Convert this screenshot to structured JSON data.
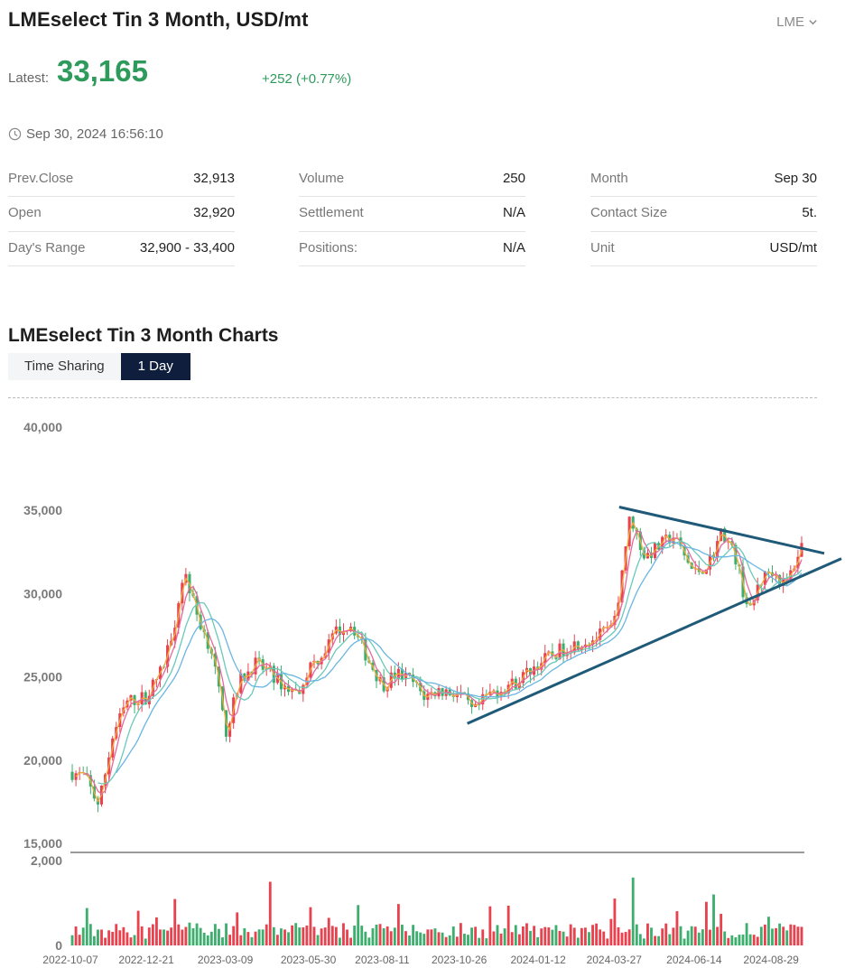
{
  "header": {
    "title": "LMEselect Tin 3 Month, USD/mt",
    "exchange": "LME",
    "latest_label": "Latest:",
    "latest_value": "33,165",
    "change": "+252 (+0.77%)",
    "timestamp": "Sep 30, 2024 16:56:10"
  },
  "stats": {
    "col1": [
      {
        "label": "Prev.Close",
        "value": "32,913"
      },
      {
        "label": "Open",
        "value": "32,920"
      },
      {
        "label": "Day's Range",
        "value": "32,900 - 33,400"
      }
    ],
    "col2": [
      {
        "label": "Volume",
        "value": "250"
      },
      {
        "label": "Settlement",
        "value": "N/A"
      },
      {
        "label": "Positions:",
        "value": "N/A"
      }
    ],
    "col3": [
      {
        "label": "Month",
        "value": "Sep 30"
      },
      {
        "label": "Contact Size",
        "value": "5t."
      },
      {
        "label": "Unit",
        "value": "USD/mt"
      }
    ]
  },
  "charts_section": {
    "title": "LMEselect Tin 3 Month Charts",
    "tabs": [
      {
        "label": "Time Sharing",
        "active": false
      },
      {
        "label": "1 Day",
        "active": true
      }
    ]
  },
  "colors": {
    "up": "#e8424e",
    "down": "#3dae6e",
    "ma5": "#f2a93b",
    "ma10": "#e36a9d",
    "ma20": "#6ac9b8",
    "ma30": "#6ab6e2",
    "trendline": "#1f5a78",
    "accent_green": "#2e9a5c",
    "active_tab": "#0f1e3c"
  },
  "chart_data": {
    "type": "candlestick",
    "price_axis": {
      "ticks": [
        "40,000",
        "35,000",
        "30,000",
        "25,000",
        "20,000",
        "15,000"
      ],
      "ylim": [
        15000,
        40000
      ]
    },
    "volume_axis": {
      "ticks": [
        "2,000",
        "0"
      ],
      "ylim": [
        0,
        2000
      ]
    },
    "x_dates": [
      "2022-10-07",
      "2022-12-21",
      "2023-03-09",
      "2023-05-30",
      "2023-08-11",
      "2023-10-26",
      "2024-01-12",
      "2024-03-27",
      "2024-06-14",
      "2024-08-29"
    ],
    "price_path": [
      [
        "2022-10-07",
        19300
      ],
      [
        "2022-10-21",
        19000
      ],
      [
        "2022-11-04",
        17300
      ],
      [
        "2022-11-18",
        21500
      ],
      [
        "2022-12-02",
        23500
      ],
      [
        "2022-12-21",
        23800
      ],
      [
        "2023-01-06",
        25500
      ],
      [
        "2023-01-20",
        28800
      ],
      [
        "2023-01-27",
        31500
      ],
      [
        "2023-02-10",
        28500
      ],
      [
        "2023-02-24",
        26500
      ],
      [
        "2023-03-09",
        21600
      ],
      [
        "2023-03-24",
        24800
      ],
      [
        "2023-04-07",
        25800
      ],
      [
        "2023-04-21",
        25300
      ],
      [
        "2023-05-05",
        24500
      ],
      [
        "2023-05-19",
        24000
      ],
      [
        "2023-05-30",
        25500
      ],
      [
        "2023-06-14",
        26500
      ],
      [
        "2023-06-28",
        27800
      ],
      [
        "2023-07-12",
        28200
      ],
      [
        "2023-07-26",
        26300
      ],
      [
        "2023-08-11",
        24500
      ],
      [
        "2023-08-25",
        25200
      ],
      [
        "2023-09-08",
        24800
      ],
      [
        "2023-09-22",
        23800
      ],
      [
        "2023-10-06",
        24200
      ],
      [
        "2023-10-26",
        24000
      ],
      [
        "2023-11-09",
        22800
      ],
      [
        "2023-11-23",
        23900
      ],
      [
        "2023-12-07",
        24300
      ],
      [
        "2023-12-21",
        24700
      ],
      [
        "2024-01-12",
        25800
      ],
      [
        "2024-01-26",
        26300
      ],
      [
        "2024-02-09",
        26800
      ],
      [
        "2024-02-23",
        27100
      ],
      [
        "2024-03-08",
        27300
      ],
      [
        "2024-03-27",
        28000
      ],
      [
        "2024-04-05",
        32000
      ],
      [
        "2024-04-12",
        34700
      ],
      [
        "2024-04-26",
        32200
      ],
      [
        "2024-05-10",
        32800
      ],
      [
        "2024-05-24",
        33500
      ],
      [
        "2024-06-14",
        31200
      ],
      [
        "2024-06-28",
        31800
      ],
      [
        "2024-07-12",
        33800
      ],
      [
        "2024-07-26",
        32000
      ],
      [
        "2024-08-02",
        30000
      ],
      [
        "2024-08-09",
        28800
      ],
      [
        "2024-08-16",
        30500
      ],
      [
        "2024-08-29",
        31500
      ],
      [
        "2024-09-12",
        30400
      ],
      [
        "2024-09-30",
        33165
      ]
    ],
    "moving_averages": [
      "MA5",
      "MA10",
      "MA20",
      "MA30"
    ],
    "annotations": [
      {
        "type": "trendline",
        "label": "upper",
        "from": [
          "2024-04-01",
          35200
        ],
        "to": [
          "2024-09-30",
          32700
        ]
      },
      {
        "type": "trendline",
        "label": "lower",
        "from": [
          "2023-11-03",
          22200
        ],
        "to": [
          "2024-09-30",
          31100
        ]
      }
    ],
    "grid": false,
    "legend": "none"
  }
}
